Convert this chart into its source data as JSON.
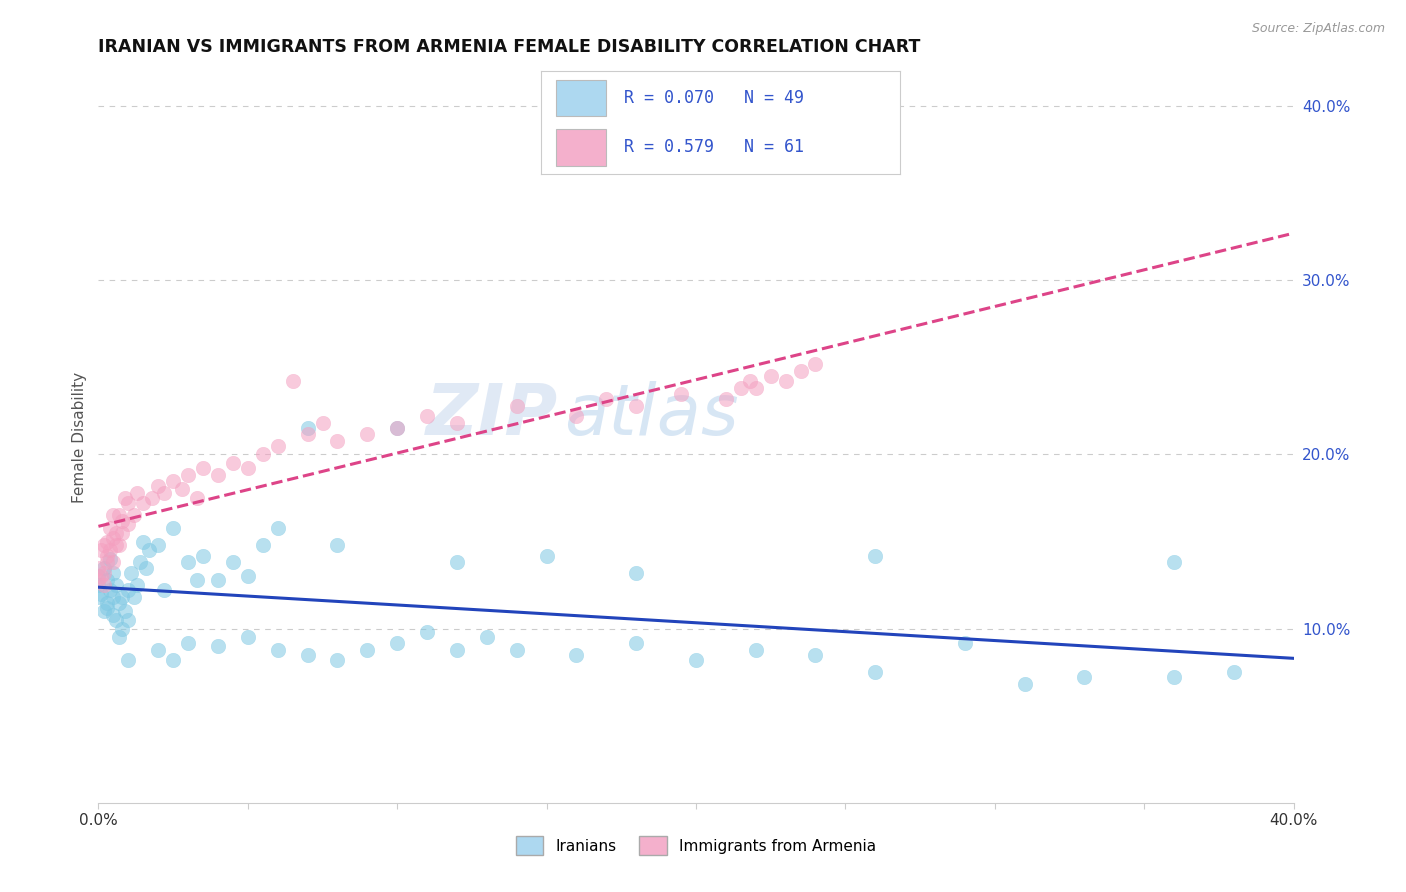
{
  "title": "IRANIAN VS IMMIGRANTS FROM ARMENIA FEMALE DISABILITY CORRELATION CHART",
  "source": "Source: ZipAtlas.com",
  "ylabel": "Female Disability",
  "xlim": [
    0.0,
    0.4
  ],
  "ylim": [
    0.0,
    0.42
  ],
  "y_ticks_right": [
    0.1,
    0.2,
    0.3,
    0.4
  ],
  "y_tick_labels_right": [
    "10.0%",
    "20.0%",
    "30.0%",
    "40.0%"
  ],
  "legend_color": "#3355cc",
  "iranian_color": "#7ec8e3",
  "armenia_color": "#f4a0c0",
  "iranian_line_color": "#2244bb",
  "armenia_line_color": "#dd4488",
  "watermark_zip": "ZIP",
  "watermark_atlas": "atlas",
  "background_color": "#ffffff",
  "grid_color": "#cccccc",
  "iranians_scatter_x": [
    0.0,
    0.0,
    0.0,
    0.001,
    0.002,
    0.002,
    0.003,
    0.003,
    0.003,
    0.004,
    0.004,
    0.005,
    0.005,
    0.005,
    0.006,
    0.006,
    0.007,
    0.007,
    0.008,
    0.008,
    0.009,
    0.01,
    0.01,
    0.011,
    0.012,
    0.013,
    0.014,
    0.015,
    0.016,
    0.017,
    0.02,
    0.022,
    0.025,
    0.03,
    0.033,
    0.035,
    0.04,
    0.045,
    0.05,
    0.055,
    0.06,
    0.07,
    0.08,
    0.1,
    0.12,
    0.15,
    0.18,
    0.26,
    0.36
  ],
  "iranians_scatter_y": [
    0.125,
    0.118,
    0.13,
    0.12,
    0.11,
    0.135,
    0.115,
    0.128,
    0.112,
    0.122,
    0.14,
    0.108,
    0.118,
    0.132,
    0.105,
    0.125,
    0.095,
    0.115,
    0.1,
    0.118,
    0.11,
    0.122,
    0.105,
    0.132,
    0.118,
    0.125,
    0.138,
    0.15,
    0.135,
    0.145,
    0.148,
    0.122,
    0.158,
    0.138,
    0.128,
    0.142,
    0.128,
    0.138,
    0.13,
    0.148,
    0.158,
    0.215,
    0.148,
    0.215,
    0.138,
    0.142,
    0.132,
    0.142,
    0.138
  ],
  "iranians_scatter_low_x": [
    0.01,
    0.02,
    0.025,
    0.03,
    0.04,
    0.05,
    0.06,
    0.07,
    0.08,
    0.09,
    0.1,
    0.11,
    0.12,
    0.13,
    0.14,
    0.16,
    0.18,
    0.2,
    0.22,
    0.24,
    0.26,
    0.29,
    0.31,
    0.33,
    0.36,
    0.38
  ],
  "iranians_scatter_low_y": [
    0.082,
    0.088,
    0.082,
    0.092,
    0.09,
    0.095,
    0.088,
    0.085,
    0.082,
    0.088,
    0.092,
    0.098,
    0.088,
    0.095,
    0.088,
    0.085,
    0.092,
    0.082,
    0.088,
    0.085,
    0.075,
    0.092,
    0.068,
    0.072,
    0.072,
    0.075
  ],
  "armenia_scatter_x": [
    0.0,
    0.0,
    0.001,
    0.001,
    0.002,
    0.002,
    0.002,
    0.003,
    0.003,
    0.003,
    0.004,
    0.004,
    0.005,
    0.005,
    0.005,
    0.006,
    0.006,
    0.007,
    0.007,
    0.008,
    0.008,
    0.009,
    0.01,
    0.01,
    0.012,
    0.013,
    0.015,
    0.018,
    0.02,
    0.022,
    0.025,
    0.028,
    0.03,
    0.033,
    0.035,
    0.04,
    0.045,
    0.05,
    0.055,
    0.06,
    0.065,
    0.07,
    0.075,
    0.08,
    0.09,
    0.1,
    0.11,
    0.12,
    0.14,
    0.16,
    0.17,
    0.18,
    0.195,
    0.21,
    0.215,
    0.218,
    0.22,
    0.225,
    0.23,
    0.235,
    0.24
  ],
  "armenia_scatter_y": [
    0.128,
    0.135,
    0.13,
    0.145,
    0.132,
    0.148,
    0.125,
    0.138,
    0.15,
    0.142,
    0.145,
    0.158,
    0.138,
    0.152,
    0.165,
    0.148,
    0.155,
    0.148,
    0.165,
    0.155,
    0.162,
    0.175,
    0.16,
    0.172,
    0.165,
    0.178,
    0.172,
    0.175,
    0.182,
    0.178,
    0.185,
    0.18,
    0.188,
    0.175,
    0.192,
    0.188,
    0.195,
    0.192,
    0.2,
    0.205,
    0.242,
    0.212,
    0.218,
    0.208,
    0.212,
    0.215,
    0.222,
    0.218,
    0.228,
    0.222,
    0.232,
    0.228,
    0.235,
    0.232,
    0.238,
    0.242,
    0.238,
    0.245,
    0.242,
    0.248,
    0.252
  ]
}
